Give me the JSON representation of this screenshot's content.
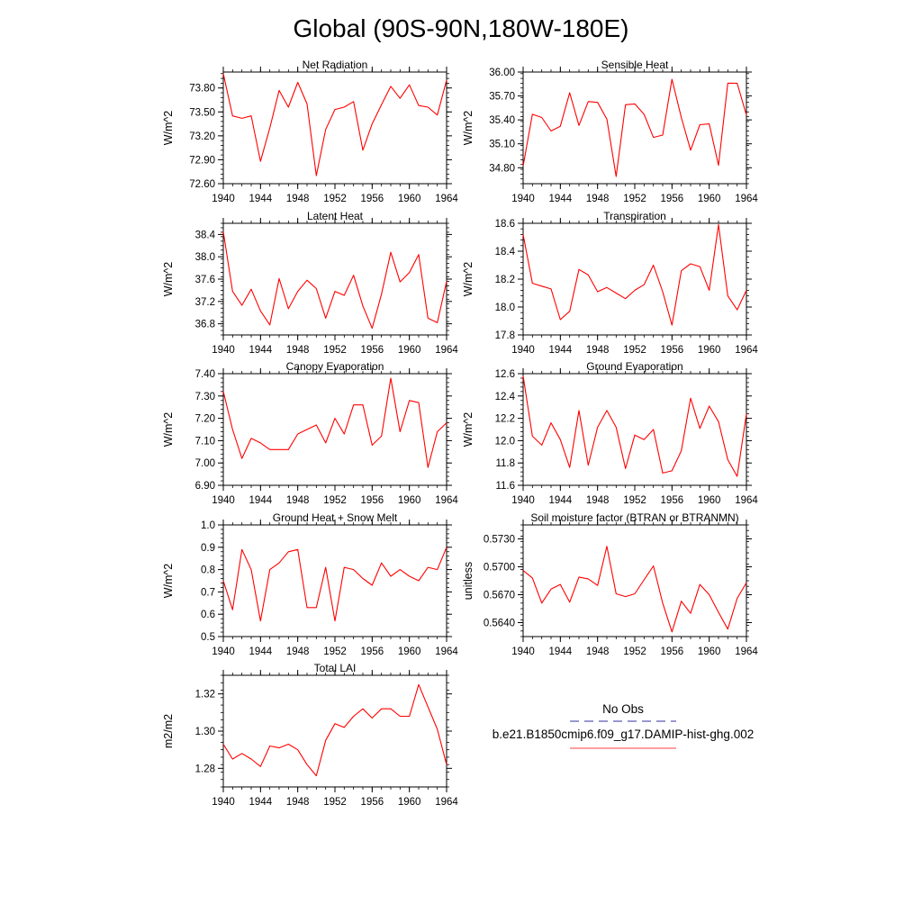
{
  "page": {
    "title": "Global (90S-90N,180W-180E)"
  },
  "chart_data": [
    {
      "type": "line",
      "title": "Net Radiation",
      "ylabel": "W/m^2",
      "xlim": [
        1940,
        1964
      ],
      "ylim": [
        72.6,
        74.0
      ],
      "yticks": [
        "72.60",
        "72.90",
        "73.20",
        "73.50",
        "73.80"
      ],
      "xticks": [
        "1940",
        "1944",
        "1948",
        "1952",
        "1956",
        "1960",
        "1964"
      ],
      "x": [
        1940,
        1941,
        1942,
        1943,
        1944,
        1945,
        1946,
        1947,
        1948,
        1949,
        1950,
        1951,
        1952,
        1953,
        1954,
        1955,
        1956,
        1957,
        1958,
        1959,
        1960,
        1961,
        1962,
        1963,
        1964
      ],
      "series": [
        {
          "color": "#ff0000",
          "values": [
            73.98,
            73.45,
            73.42,
            73.45,
            72.88,
            73.3,
            73.77,
            73.56,
            73.87,
            73.6,
            72.7,
            73.28,
            73.53,
            73.56,
            73.63,
            73.02,
            73.35,
            73.59,
            73.82,
            73.67,
            73.84,
            73.58,
            73.56,
            73.46,
            73.9
          ]
        }
      ]
    },
    {
      "type": "line",
      "title": "Sensible Heat",
      "ylabel": "W/m^2",
      "xlim": [
        1940,
        1964
      ],
      "ylim": [
        34.6,
        36.0
      ],
      "yticks": [
        "34.80",
        "35.10",
        "35.40",
        "35.70",
        "36.00"
      ],
      "xticks": [
        "1940",
        "1944",
        "1948",
        "1952",
        "1956",
        "1960",
        "1964"
      ],
      "x": [
        1940,
        1941,
        1942,
        1943,
        1944,
        1945,
        1946,
        1947,
        1948,
        1949,
        1950,
        1951,
        1952,
        1953,
        1954,
        1955,
        1956,
        1957,
        1958,
        1959,
        1960,
        1961,
        1962,
        1963,
        1964
      ],
      "series": [
        {
          "color": "#ff0000",
          "values": [
            34.82,
            35.47,
            35.43,
            35.26,
            35.32,
            35.74,
            35.33,
            35.63,
            35.62,
            35.41,
            34.69,
            35.59,
            35.6,
            35.47,
            35.18,
            35.21,
            35.91,
            35.43,
            35.02,
            35.34,
            35.35,
            34.83,
            35.86,
            35.86,
            35.46
          ]
        }
      ]
    },
    {
      "type": "line",
      "title": "Latent Heat",
      "ylabel": "W/m^2",
      "xlim": [
        1940,
        1964
      ],
      "ylim": [
        36.6,
        38.6
      ],
      "yticks": [
        "36.8",
        "37.2",
        "37.6",
        "38.0",
        "38.4"
      ],
      "xticks": [
        "1940",
        "1944",
        "1948",
        "1952",
        "1956",
        "1960",
        "1964"
      ],
      "x": [
        1940,
        1941,
        1942,
        1943,
        1944,
        1945,
        1946,
        1947,
        1948,
        1949,
        1950,
        1951,
        1952,
        1953,
        1954,
        1955,
        1956,
        1957,
        1958,
        1959,
        1960,
        1961,
        1962,
        1963,
        1964
      ],
      "series": [
        {
          "color": "#ff0000",
          "values": [
            38.45,
            37.38,
            37.13,
            37.42,
            37.03,
            36.78,
            37.61,
            37.07,
            37.38,
            37.58,
            37.43,
            36.9,
            37.38,
            37.31,
            37.67,
            37.12,
            36.72,
            37.33,
            38.08,
            37.55,
            37.72,
            38.04,
            36.9,
            36.82,
            37.56
          ]
        }
      ]
    },
    {
      "type": "line",
      "title": "Transpiration",
      "ylabel": "W/m^2",
      "xlim": [
        1940,
        1964
      ],
      "ylim": [
        17.8,
        18.6
      ],
      "yticks": [
        "17.8",
        "18.0",
        "18.2",
        "18.4",
        "18.6"
      ],
      "xticks": [
        "1940",
        "1944",
        "1948",
        "1952",
        "1956",
        "1960",
        "1964"
      ],
      "x": [
        1940,
        1941,
        1942,
        1943,
        1944,
        1945,
        1946,
        1947,
        1948,
        1949,
        1950,
        1951,
        1952,
        1953,
        1954,
        1955,
        1956,
        1957,
        1958,
        1959,
        1960,
        1961,
        1962,
        1963,
        1964
      ],
      "series": [
        {
          "color": "#ff0000",
          "values": [
            18.52,
            18.17,
            18.15,
            18.13,
            17.91,
            17.97,
            18.27,
            18.23,
            18.11,
            18.14,
            18.1,
            18.06,
            18.12,
            18.16,
            18.3,
            18.11,
            17.87,
            18.26,
            18.31,
            18.29,
            18.12,
            18.59,
            18.08,
            17.98,
            18.12
          ]
        }
      ]
    },
    {
      "type": "line",
      "title": "Canopy Evaporation",
      "ylabel": "W/m^2",
      "xlim": [
        1940,
        1964
      ],
      "ylim": [
        6.9,
        7.4
      ],
      "yticks": [
        "6.90",
        "7.00",
        "7.10",
        "7.20",
        "7.30",
        "7.40"
      ],
      "xticks": [
        "1940",
        "1944",
        "1948",
        "1952",
        "1956",
        "1960",
        "1964"
      ],
      "x": [
        1940,
        1941,
        1942,
        1943,
        1944,
        1945,
        1946,
        1947,
        1948,
        1949,
        1950,
        1951,
        1952,
        1953,
        1954,
        1955,
        1956,
        1957,
        1958,
        1959,
        1960,
        1961,
        1962,
        1963,
        1964
      ],
      "series": [
        {
          "color": "#ff0000",
          "values": [
            7.32,
            7.15,
            7.02,
            7.11,
            7.09,
            7.06,
            7.06,
            7.06,
            7.13,
            7.15,
            7.17,
            7.09,
            7.2,
            7.13,
            7.26,
            7.26,
            7.08,
            7.12,
            7.38,
            7.14,
            7.28,
            7.27,
            6.98,
            7.14,
            7.18
          ]
        }
      ]
    },
    {
      "type": "line",
      "title": "Ground Evaporation",
      "ylabel": "W/m^2",
      "xlim": [
        1940,
        1964
      ],
      "ylim": [
        11.6,
        12.6
      ],
      "yticks": [
        "11.6",
        "11.8",
        "12.0",
        "12.2",
        "12.4",
        "12.6"
      ],
      "xticks": [
        "1940",
        "1944",
        "1948",
        "1952",
        "1956",
        "1960",
        "1964"
      ],
      "x": [
        1940,
        1941,
        1942,
        1943,
        1944,
        1945,
        1946,
        1947,
        1948,
        1949,
        1950,
        1951,
        1952,
        1953,
        1954,
        1955,
        1956,
        1957,
        1958,
        1959,
        1960,
        1961,
        1962,
        1963,
        1964
      ],
      "series": [
        {
          "color": "#ff0000",
          "values": [
            12.58,
            12.04,
            11.96,
            12.16,
            12.01,
            11.76,
            12.27,
            11.78,
            12.12,
            12.27,
            12.12,
            11.75,
            12.05,
            12.01,
            12.1,
            11.71,
            11.73,
            11.91,
            12.38,
            12.11,
            12.31,
            12.17,
            11.83,
            11.68,
            12.24
          ]
        }
      ]
    },
    {
      "type": "line",
      "title": "Ground Heat + Snow Melt",
      "ylabel": "W/m^2",
      "xlim": [
        1940,
        1964
      ],
      "ylim": [
        0.5,
        1.0
      ],
      "yticks": [
        "0.5",
        "0.6",
        "0.7",
        "0.8",
        "0.9",
        "1.0"
      ],
      "xticks": [
        "1940",
        "1944",
        "1948",
        "1952",
        "1956",
        "1960",
        "1964"
      ],
      "x": [
        1940,
        1941,
        1942,
        1943,
        1944,
        1945,
        1946,
        1947,
        1948,
        1949,
        1950,
        1951,
        1952,
        1953,
        1954,
        1955,
        1956,
        1957,
        1958,
        1959,
        1960,
        1961,
        1962,
        1963,
        1964
      ],
      "series": [
        {
          "color": "#ff0000",
          "values": [
            0.75,
            0.62,
            0.89,
            0.8,
            0.57,
            0.8,
            0.83,
            0.88,
            0.89,
            0.63,
            0.63,
            0.81,
            0.57,
            0.81,
            0.8,
            0.76,
            0.73,
            0.83,
            0.77,
            0.8,
            0.77,
            0.75,
            0.81,
            0.8,
            0.9
          ]
        }
      ]
    },
    {
      "type": "line",
      "title": "Soil moisture factor (BTRAN or BTRANMN)",
      "ylabel": "unitless",
      "xlim": [
        1940,
        1964
      ],
      "ylim": [
        0.5625,
        0.5745
      ],
      "yticks": [
        "0.5640",
        "0.5670",
        "0.5700",
        "0.5730"
      ],
      "xticks": [
        "1940",
        "1944",
        "1948",
        "1952",
        "1956",
        "1960",
        "1964"
      ],
      "x": [
        1940,
        1941,
        1942,
        1943,
        1944,
        1945,
        1946,
        1947,
        1948,
        1949,
        1950,
        1951,
        1952,
        1953,
        1954,
        1955,
        1956,
        1957,
        1958,
        1959,
        1960,
        1961,
        1962,
        1963,
        1964
      ],
      "series": [
        {
          "color": "#ff0000",
          "values": [
            0.5696,
            0.5688,
            0.5661,
            0.5676,
            0.5681,
            0.5662,
            0.5689,
            0.5687,
            0.568,
            0.5722,
            0.5671,
            0.5668,
            0.5671,
            0.5686,
            0.5701,
            0.5661,
            0.563,
            0.5663,
            0.565,
            0.5681,
            0.567,
            0.5651,
            0.5633,
            0.5666,
            0.5683
          ]
        }
      ]
    },
    {
      "type": "line",
      "title": "Total LAI",
      "ylabel": "m2/m2",
      "xlim": [
        1940,
        1964
      ],
      "ylim": [
        1.27,
        1.33
      ],
      "yticks": [
        "1.28",
        "1.30",
        "1.32"
      ],
      "xticks": [
        "1940",
        "1944",
        "1948",
        "1952",
        "1956",
        "1960",
        "1964"
      ],
      "x": [
        1940,
        1941,
        1942,
        1943,
        1944,
        1945,
        1946,
        1947,
        1948,
        1949,
        1950,
        1951,
        1952,
        1953,
        1954,
        1955,
        1956,
        1957,
        1958,
        1959,
        1960,
        1961,
        1962,
        1963,
        1964
      ],
      "series": [
        {
          "color": "#ff0000",
          "values": [
            1.293,
            1.285,
            1.288,
            1.285,
            1.281,
            1.292,
            1.291,
            1.293,
            1.29,
            1.282,
            1.276,
            1.295,
            1.304,
            1.302,
            1.308,
            1.312,
            1.307,
            1.312,
            1.312,
            1.308,
            1.308,
            1.325,
            1.313,
            1.301,
            1.282
          ]
        }
      ]
    }
  ],
  "legend": {
    "entries": [
      {
        "label": "No Obs",
        "color": "#5a5ab5",
        "style": "dashed"
      },
      {
        "label": "b.e21.B1850cmip6.f09_g17.DAMIP-hist-ghg.002",
        "color": "#ff6666",
        "style": "solid"
      }
    ]
  }
}
